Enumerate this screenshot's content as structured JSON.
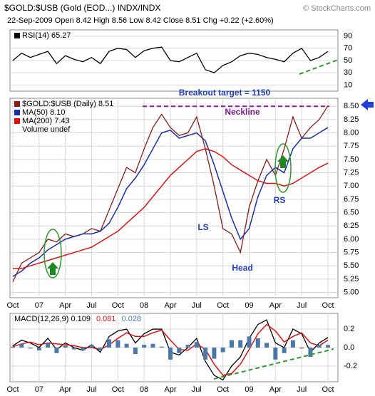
{
  "header": {
    "title": "$GOLD:$USB (Gold (EOD...) INDX/INDX",
    "source": "© StockCharts.com",
    "quote": "22-Sep-2009 Open 8.42 High 8.56 Low 8.42 Close 8.51 Chg +0.22 (+2.60%)"
  },
  "chart_data": [
    {
      "type": "line",
      "series": [
        {
          "name": "RSI(14) 65.27",
          "color": "#000000",
          "values": [
            50,
            62,
            55,
            60,
            65,
            45,
            58,
            52,
            48,
            55,
            45,
            65,
            70,
            68,
            55,
            66,
            70,
            72,
            50,
            48,
            55,
            62,
            35,
            30,
            42,
            48,
            58,
            62,
            60,
            55,
            52,
            48,
            62,
            70,
            50,
            55,
            65
          ]
        }
      ],
      "ylim": [
        0,
        100
      ],
      "yticks": [
        10,
        30,
        50,
        70,
        90
      ],
      "grid": true
    },
    {
      "type": "line",
      "categories": [
        "Oct",
        null,
        null,
        "07",
        null,
        null,
        "Apr",
        null,
        null,
        "Jul",
        null,
        null,
        "Oct",
        null,
        null,
        "08",
        null,
        null,
        "Apr",
        null,
        null,
        "Jul",
        null,
        null,
        "Oct",
        null,
        null,
        "09",
        null,
        null,
        "Apr",
        null,
        null,
        "Jul",
        null,
        null,
        "Oct"
      ],
      "series": [
        {
          "name": "$GOLD:$USB (Daily) 8.51",
          "color": "#8b1a1a",
          "values": [
            5.2,
            5.55,
            5.65,
            5.75,
            6.0,
            5.95,
            6.1,
            6.05,
            6.1,
            6.2,
            6.15,
            6.55,
            6.95,
            7.35,
            7.25,
            7.7,
            8.1,
            8.35,
            8.1,
            7.95,
            8.0,
            8.3,
            7.7,
            7.0,
            6.2,
            6.1,
            5.75,
            6.6,
            7.1,
            7.5,
            7.2,
            7.7,
            8.3,
            7.9,
            8.1,
            8.25,
            8.51
          ]
        },
        {
          "name": "MA(50) 8.10",
          "color": "#1a2ea8",
          "values": [
            5.3,
            5.4,
            5.55,
            5.65,
            5.8,
            5.9,
            6.0,
            6.05,
            6.1,
            6.1,
            6.15,
            6.3,
            6.6,
            6.95,
            7.15,
            7.4,
            7.7,
            8.0,
            8.05,
            7.9,
            7.95,
            8.0,
            7.85,
            7.4,
            6.9,
            6.4,
            6.0,
            6.2,
            6.8,
            7.2,
            7.35,
            7.25,
            7.7,
            7.9,
            7.9,
            8.0,
            8.1
          ]
        },
        {
          "name": "MA(200) 7.43",
          "color": "#e01010",
          "values": [
            5.45,
            5.45,
            5.5,
            5.55,
            5.6,
            5.65,
            5.7,
            5.75,
            5.8,
            5.85,
            5.95,
            6.05,
            6.15,
            6.3,
            6.45,
            6.6,
            6.8,
            7.0,
            7.2,
            7.35,
            7.5,
            7.65,
            7.7,
            7.65,
            7.55,
            7.4,
            7.3,
            7.2,
            7.1,
            7.05,
            7.05,
            7.0,
            7.05,
            7.15,
            7.25,
            7.35,
            7.43
          ]
        }
      ],
      "legend_extra": "Volume undef",
      "ylim": [
        4.9,
        8.65
      ],
      "yticks": [
        {
          "value": 5,
          "label": "5.00"
        },
        5.25,
        {
          "value": 5.5,
          "label": "5.50"
        },
        5.75,
        {
          "value": 6,
          "label": "6.00"
        },
        6.25,
        {
          "value": 6.5,
          "label": "6.50"
        },
        6.75,
        {
          "value": 7,
          "label": "7.00"
        },
        7.25,
        {
          "value": 7.5,
          "label": "7.50"
        },
        7.75,
        {
          "value": 8,
          "label": "8.00"
        },
        8.25,
        {
          "value": 8.5,
          "label": "8.50"
        }
      ],
      "grid": true,
      "annotations": [
        "Breakout target = 1150",
        "Neckline",
        "LS",
        "Head",
        "RS"
      ]
    },
    {
      "type": "macd",
      "categories": [
        "Oct",
        null,
        null,
        "07",
        null,
        null,
        "Apr",
        null,
        null,
        "Jul",
        null,
        null,
        "Oct",
        null,
        null,
        "08",
        null,
        null,
        "Apr",
        null,
        null,
        "Jul",
        null,
        null,
        "Oct",
        null,
        null,
        "09",
        null,
        null,
        "Apr",
        null,
        null,
        "Jul",
        null,
        null,
        "Oct"
      ],
      "series": [
        {
          "name": "MACD(12,26,9) 0.109",
          "color": "#000000",
          "values": [
            0.02,
            0.08,
            0.05,
            0.0,
            0.1,
            -0.02,
            0.05,
            0.0,
            -0.03,
            0.03,
            -0.05,
            0.12,
            0.18,
            0.2,
            0.05,
            0.15,
            0.2,
            0.2,
            -0.05,
            -0.08,
            0.0,
            0.1,
            -0.15,
            -0.3,
            -0.35,
            -0.2,
            -0.1,
            0.1,
            0.25,
            0.3,
            0.05,
            0.0,
            0.2,
            0.15,
            -0.05,
            0.05,
            0.109
          ]
        },
        {
          "name": "0.081",
          "color": "#e01010",
          "values": [
            0.01,
            0.04,
            0.06,
            0.03,
            0.05,
            0.04,
            0.03,
            0.02,
            0.0,
            0.0,
            -0.02,
            0.03,
            0.1,
            0.16,
            0.12,
            0.12,
            0.16,
            0.19,
            0.08,
            -0.02,
            -0.03,
            0.04,
            -0.02,
            -0.18,
            -0.3,
            -0.28,
            -0.18,
            -0.02,
            0.15,
            0.25,
            0.18,
            0.06,
            0.12,
            0.16,
            0.05,
            0.02,
            0.081
          ]
        },
        {
          "name": "0.028",
          "color": "#4a78a8",
          "kind": "histogram",
          "values": [
            0.01,
            0.04,
            -0.01,
            -0.03,
            0.05,
            -0.06,
            0.02,
            -0.02,
            -0.03,
            0.03,
            -0.03,
            0.09,
            0.08,
            0.04,
            -0.07,
            0.03,
            0.04,
            0.01,
            -0.13,
            -0.06,
            0.03,
            0.06,
            -0.13,
            -0.12,
            -0.05,
            0.08,
            0.08,
            0.12,
            0.1,
            0.05,
            -0.13,
            -0.06,
            0.08,
            -0.01,
            -0.1,
            0.03,
            0.028
          ]
        }
      ],
      "ylim": [
        -0.37,
        0.37
      ],
      "yticks": [
        -0.2,
        {
          "value": 0,
          "label": "0.0"
        },
        0.2
      ],
      "grid": true
    }
  ]
}
